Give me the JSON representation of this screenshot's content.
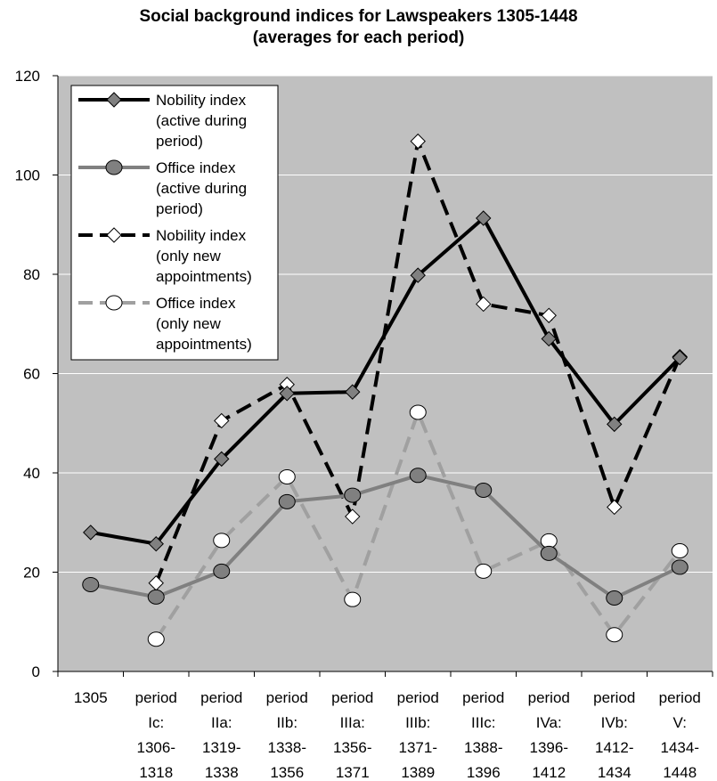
{
  "chart_data": {
    "type": "line",
    "title": "Social background indices for Lawspeakers 1305-1448",
    "subtitle": "(averages for each period)",
    "xlabel": "",
    "ylabel": "",
    "ylim": [
      0,
      120
    ],
    "yticks": [
      0,
      20,
      40,
      60,
      80,
      100,
      120
    ],
    "grid": true,
    "legend_position": "top-left",
    "plot_background": "#c0c0c0",
    "categories": [
      [
        "1305"
      ],
      [
        "period",
        "Ic:",
        "1306-",
        "1318"
      ],
      [
        "period",
        "IIa:",
        "1319-",
        "1338"
      ],
      [
        "period",
        "IIb:",
        "1338-",
        "1356"
      ],
      [
        "period",
        "IIIa:",
        "1356-",
        "1371"
      ],
      [
        "period",
        "IIIb:",
        "1371-",
        "1389"
      ],
      [
        "period",
        "IIIc:",
        "1388-",
        "1396"
      ],
      [
        "period",
        "IVa:",
        "1396-",
        "1412"
      ],
      [
        "period",
        "IVb:",
        "1412-",
        "1434"
      ],
      [
        "period",
        "V:",
        "1434-",
        "1448"
      ]
    ],
    "series": [
      {
        "name": "Nobility index (active during period)",
        "legend_lines": [
          "Nobility index",
          "(active during",
          "period)"
        ],
        "values": [
          28,
          25.7,
          42.8,
          56,
          56.3,
          79.8,
          91.3,
          67,
          49.8,
          63.2
        ],
        "color": "#000000",
        "dash": "",
        "marker": "diamond",
        "marker_fill": "#808080"
      },
      {
        "name": "Office index (active during period)",
        "legend_lines": [
          "Office index",
          "(active during",
          "period)"
        ],
        "values": [
          17.5,
          15,
          20.2,
          34.2,
          35.5,
          39.5,
          36.5,
          23.8,
          14.8,
          21
        ],
        "color": "#808080",
        "dash": "",
        "marker": "circle",
        "marker_fill": "#808080"
      },
      {
        "name": "Nobility index (only new appointments)",
        "legend_lines": [
          "Nobility index",
          "(only new",
          "appointments)"
        ],
        "values": [
          null,
          17.8,
          50.5,
          57.8,
          31.2,
          106.8,
          74,
          71.7,
          33.1,
          63.4
        ],
        "color": "#000000",
        "dash": "18,9",
        "marker": "diamond",
        "marker_fill": "#ffffff"
      },
      {
        "name": "Office index (only new appointments)",
        "legend_lines": [
          "Office index",
          "(only new",
          "appointments)"
        ],
        "values": [
          null,
          6.5,
          26.4,
          39.2,
          14.5,
          52.2,
          20.2,
          26.3,
          7.4,
          24.3
        ],
        "color": "#a0a0a0",
        "dash": "18,9",
        "marker": "circle",
        "marker_fill": "#ffffff"
      }
    ]
  }
}
